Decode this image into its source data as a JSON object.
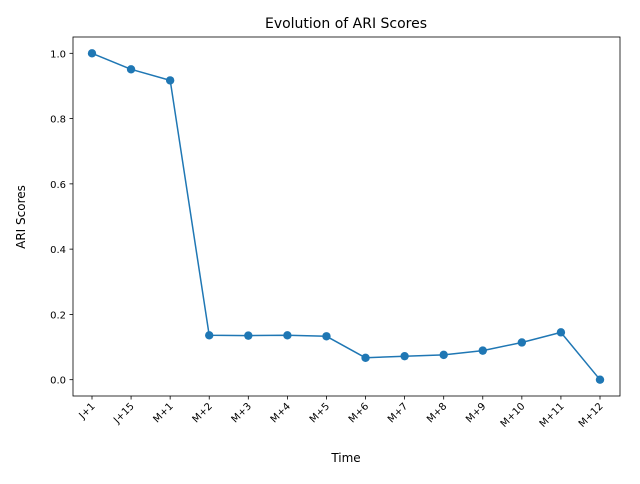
{
  "chart_data": {
    "type": "line",
    "title": "Evolution of ARI Scores",
    "xlabel": "Time",
    "ylabel": "ARI Scores",
    "categories": [
      "J+1",
      "J+15",
      "M+1",
      "M+2",
      "M+3",
      "M+4",
      "M+5",
      "M+6",
      "M+7",
      "M+8",
      "M+9",
      "M+10",
      "M+11",
      "M+12"
    ],
    "series": [
      {
        "values": [
          1.0,
          0.951,
          0.917,
          0.136,
          0.135,
          0.136,
          0.133,
          0.067,
          0.072,
          0.076,
          0.089,
          0.114,
          0.145,
          0.0
        ],
        "color": "#1f77b4",
        "marker": "circle"
      }
    ],
    "ylim": [
      -0.05,
      1.05
    ],
    "yticks": [
      0.0,
      0.2,
      0.4,
      0.6,
      0.8,
      1.0
    ],
    "ytick_labels": [
      "0.0",
      "0.2",
      "0.4",
      "0.6",
      "0.8",
      "1.0"
    ],
    "x_tick_rotation": "45 degrees",
    "grid": false,
    "legend": "none"
  }
}
